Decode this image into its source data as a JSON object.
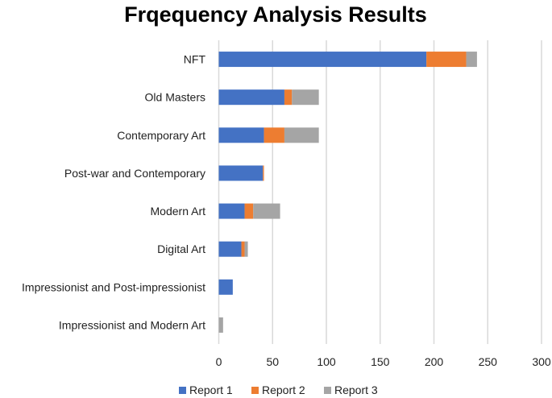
{
  "chart_data": {
    "type": "bar",
    "orientation": "horizontal",
    "stacked": true,
    "title": "Frqequency Analysis Results",
    "xlabel": "",
    "ylabel": "",
    "xlim": [
      0,
      300
    ],
    "xticks": [
      0,
      50,
      100,
      150,
      200,
      250,
      300
    ],
    "grid": true,
    "legend_position": "bottom",
    "categories": [
      "NFT",
      "Old Masters",
      "Contemporary Art",
      "Post-war and Contemporary",
      "Modern Art",
      "Digital Art",
      "Impressionist and Post-impressionist",
      "Impressionist and Modern Art"
    ],
    "series": [
      {
        "name": "Report 1",
        "color": "#4472C4",
        "values": [
          193,
          61,
          42,
          41,
          24,
          21,
          13,
          0
        ]
      },
      {
        "name": "Report 2",
        "color": "#ED7D31",
        "values": [
          37,
          7,
          19,
          1,
          8,
          3,
          0,
          0
        ]
      },
      {
        "name": "Report 3",
        "color": "#A5A5A5",
        "values": [
          10,
          25,
          32,
          0,
          25,
          3,
          0,
          4
        ]
      }
    ]
  }
}
